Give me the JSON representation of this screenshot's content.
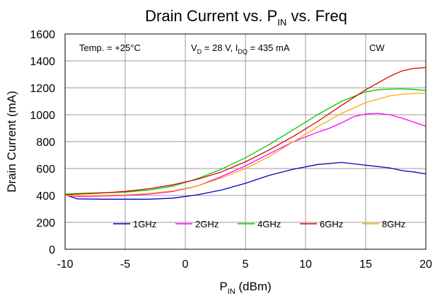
{
  "chart_data": {
    "type": "line",
    "title": {
      "main": "Drain Current vs. P",
      "sub": "IN",
      "tail": " vs. Freq"
    },
    "xlabel": {
      "main": "P",
      "sub": "IN",
      "tail": " (dBm)"
    },
    "ylabel": "Drain Current (mA)",
    "xlim": [
      -10,
      20
    ],
    "ylim": [
      0,
      1600
    ],
    "xticks": [
      -10,
      -5,
      0,
      5,
      10,
      15,
      20
    ],
    "yticks": [
      0,
      200,
      400,
      600,
      800,
      1000,
      1200,
      1400,
      1600
    ],
    "grid": true,
    "annotations": {
      "temp": "Temp. = +25°C",
      "bias": {
        "v": "V",
        "v_sub": "D",
        "v_text": " = 28 V, I",
        "i_sub": "DQ",
        "i_text": " = 435 mA"
      },
      "mode": "CW"
    },
    "legend_position": "bottom-center",
    "series": [
      {
        "name": "1GHz",
        "color": "#0000c0",
        "x": [
          -10,
          -9,
          -7,
          -5,
          -3,
          -1,
          1,
          3,
          5,
          7,
          9,
          11,
          13,
          15,
          17,
          18,
          19,
          20
        ],
        "y": [
          405,
          375,
          372,
          372,
          372,
          380,
          405,
          440,
          490,
          550,
          595,
          630,
          645,
          625,
          605,
          585,
          575,
          560
        ]
      },
      {
        "name": "2GHz",
        "color": "#ff00ff",
        "x": [
          -10,
          -9,
          -7,
          -5,
          -3,
          -1,
          1,
          3,
          5,
          7,
          9,
          11,
          12,
          13,
          14,
          15,
          16,
          17,
          18,
          19,
          20
        ],
        "y": [
          400,
          392,
          395,
          400,
          410,
          430,
          470,
          540,
          620,
          710,
          800,
          870,
          900,
          940,
          985,
          1005,
          1010,
          1000,
          975,
          945,
          915
        ]
      },
      {
        "name": "4GHz",
        "color": "#00cc00",
        "x": [
          -10,
          -9,
          -7,
          -5,
          -3,
          -1,
          1,
          3,
          5,
          7,
          9,
          11,
          13,
          15,
          16,
          17,
          18,
          19,
          20
        ],
        "y": [
          410,
          415,
          420,
          425,
          440,
          470,
          525,
          595,
          680,
          780,
          890,
          1000,
          1100,
          1170,
          1185,
          1190,
          1192,
          1188,
          1180
        ]
      },
      {
        "name": "6GHz",
        "color": "#dd0000",
        "x": [
          -10,
          -9,
          -7,
          -5,
          -3,
          -1,
          1,
          3,
          5,
          7,
          9,
          11,
          13,
          15,
          17,
          18,
          19,
          20
        ],
        "y": [
          405,
          410,
          418,
          430,
          450,
          480,
          520,
          575,
          650,
          740,
          840,
          950,
          1070,
          1185,
          1285,
          1325,
          1345,
          1350
        ]
      },
      {
        "name": "8GHz",
        "color": "#ffaa00",
        "x": [
          -10,
          -9,
          -7,
          -5,
          -3,
          -1,
          1,
          3,
          5,
          7,
          9,
          11,
          13,
          15,
          17,
          18,
          19,
          20
        ],
        "y": [
          400,
          398,
          400,
          405,
          415,
          435,
          470,
          530,
          600,
          690,
          800,
          910,
          1010,
          1090,
          1140,
          1152,
          1158,
          1160
        ]
      }
    ]
  }
}
